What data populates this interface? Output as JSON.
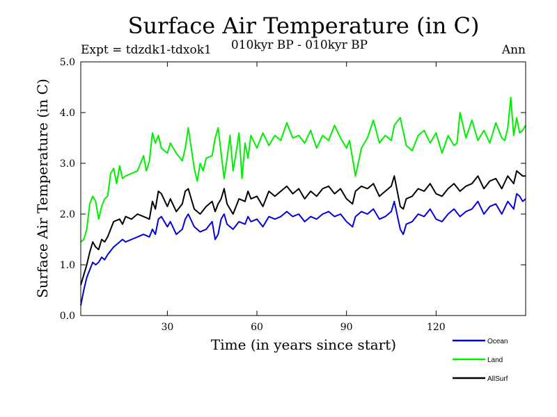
{
  "chart_data": {
    "type": "line",
    "title": "Surface Air Temperature (in C)",
    "subtitle": "010kyr BP - 010kyr BP",
    "left_label": "Expt = tdzdk1-tdxok1",
    "right_label": "Ann",
    "xlabel": "Time (in years since start)",
    "ylabel": "Surface Air Temperature (in C)",
    "xlim": [
      1,
      150
    ],
    "ylim": [
      0,
      5
    ],
    "xticks": [
      30,
      60,
      90,
      120
    ],
    "yticks": [
      0.0,
      1.0,
      2.0,
      3.0,
      4.0,
      5.0
    ],
    "ytick_labels": [
      "0.0",
      "1.0",
      "2.0",
      "3.0",
      "4.0",
      "5.0"
    ],
    "grid": false,
    "legend_position": "bottom-right",
    "series": [
      {
        "name": "Ocean",
        "color": "#0000dd",
        "x": [
          1,
          2,
          3,
          4,
          5,
          6,
          7,
          8,
          9,
          10,
          12,
          14,
          15,
          16,
          18,
          20,
          22,
          24,
          25,
          26,
          27,
          28,
          30,
          31,
          33,
          35,
          36,
          37,
          39,
          41,
          43,
          45,
          46,
          47,
          48,
          49,
          50,
          52,
          54,
          56,
          57,
          58,
          60,
          62,
          64,
          66,
          68,
          70,
          72,
          74,
          76,
          78,
          80,
          82,
          84,
          86,
          88,
          90,
          92,
          93,
          95,
          97,
          99,
          101,
          103,
          105,
          106,
          108,
          109,
          110,
          112,
          114,
          116,
          118,
          120,
          122,
          124,
          126,
          128,
          130,
          132,
          134,
          136,
          138,
          140,
          142,
          144,
          146,
          147,
          148,
          149,
          150
        ],
        "values": [
          0.2,
          0.5,
          0.75,
          0.9,
          1.05,
          1.0,
          1.05,
          1.15,
          1.1,
          1.2,
          1.35,
          1.45,
          1.5,
          1.45,
          1.5,
          1.55,
          1.6,
          1.55,
          1.7,
          1.6,
          1.9,
          1.95,
          1.75,
          1.85,
          1.6,
          1.7,
          1.9,
          2.0,
          1.75,
          1.65,
          1.7,
          1.85,
          1.5,
          1.6,
          1.9,
          2.0,
          1.8,
          1.7,
          1.85,
          1.8,
          1.95,
          1.85,
          1.9,
          1.75,
          1.95,
          1.9,
          1.95,
          2.05,
          1.95,
          2.0,
          1.85,
          1.95,
          1.9,
          2.0,
          2.05,
          1.95,
          2.0,
          1.85,
          1.75,
          1.95,
          2.05,
          2.0,
          2.1,
          1.9,
          1.95,
          2.05,
          2.25,
          1.7,
          1.6,
          1.8,
          1.85,
          2.0,
          1.95,
          2.1,
          1.9,
          1.85,
          2.0,
          2.1,
          1.95,
          2.05,
          2.1,
          2.25,
          2.0,
          2.15,
          2.2,
          2.0,
          2.25,
          2.1,
          2.4,
          2.35,
          2.25,
          2.3
        ]
      },
      {
        "name": "Land",
        "color": "#00ee00",
        "x": [
          1,
          2,
          3,
          4,
          5,
          6,
          7,
          8,
          9,
          10,
          11,
          12,
          13,
          14,
          15,
          16,
          18,
          20,
          22,
          23,
          24,
          25,
          26,
          27,
          28,
          30,
          31,
          33,
          35,
          36,
          37,
          39,
          40,
          41,
          42,
          43,
          45,
          46,
          47,
          48,
          49,
          50,
          51,
          52,
          53,
          54,
          55,
          56,
          57,
          58,
          60,
          62,
          64,
          66,
          68,
          70,
          72,
          74,
          76,
          78,
          80,
          82,
          84,
          86,
          88,
          90,
          91,
          92,
          93,
          95,
          97,
          99,
          101,
          103,
          105,
          106,
          108,
          110,
          112,
          114,
          116,
          118,
          120,
          122,
          124,
          126,
          127,
          128,
          130,
          132,
          134,
          136,
          138,
          140,
          142,
          143,
          144,
          145,
          146,
          147,
          148,
          149,
          150
        ],
        "values": [
          1.45,
          1.5,
          1.7,
          2.2,
          2.35,
          2.25,
          1.9,
          2.15,
          2.3,
          2.35,
          2.8,
          2.9,
          2.6,
          2.95,
          2.7,
          2.75,
          2.8,
          2.85,
          3.15,
          2.85,
          3.05,
          3.6,
          3.4,
          3.55,
          3.3,
          3.2,
          3.4,
          3.2,
          3.05,
          3.3,
          3.7,
          2.9,
          2.65,
          3.0,
          2.85,
          3.1,
          3.15,
          3.5,
          3.7,
          3.2,
          2.7,
          3.1,
          3.55,
          2.85,
          3.2,
          3.6,
          2.7,
          3.4,
          3.1,
          3.55,
          3.3,
          3.6,
          3.35,
          3.55,
          3.45,
          3.8,
          3.5,
          3.55,
          3.4,
          3.65,
          3.3,
          3.55,
          3.45,
          3.75,
          3.5,
          3.3,
          3.45,
          3.1,
          2.75,
          3.3,
          3.5,
          3.85,
          3.4,
          3.55,
          3.45,
          3.75,
          3.9,
          3.35,
          3.25,
          3.55,
          3.65,
          3.4,
          3.6,
          3.2,
          3.55,
          3.35,
          3.4,
          4.0,
          3.5,
          3.85,
          3.45,
          3.65,
          3.4,
          3.8,
          3.5,
          3.45,
          3.7,
          4.3,
          3.55,
          3.9,
          3.6,
          3.65,
          3.75
        ]
      },
      {
        "name": "AllSurf",
        "color": "#000000",
        "x": [
          1,
          2,
          3,
          4,
          5,
          6,
          7,
          8,
          9,
          10,
          12,
          14,
          15,
          16,
          18,
          20,
          22,
          24,
          25,
          26,
          27,
          28,
          30,
          31,
          33,
          35,
          36,
          37,
          39,
          41,
          43,
          45,
          46,
          47,
          48,
          49,
          50,
          52,
          54,
          56,
          57,
          58,
          60,
          62,
          64,
          66,
          68,
          70,
          72,
          74,
          76,
          78,
          80,
          82,
          84,
          86,
          88,
          90,
          92,
          93,
          95,
          97,
          99,
          101,
          103,
          105,
          106,
          108,
          109,
          110,
          112,
          114,
          116,
          118,
          120,
          122,
          124,
          126,
          128,
          130,
          132,
          134,
          136,
          138,
          140,
          142,
          144,
          146,
          147,
          148,
          149,
          150
        ],
        "values": [
          0.6,
          0.8,
          1.0,
          1.25,
          1.45,
          1.35,
          1.3,
          1.5,
          1.45,
          1.55,
          1.85,
          1.9,
          1.8,
          1.95,
          1.9,
          2.0,
          1.95,
          1.9,
          2.25,
          2.1,
          2.45,
          2.4,
          2.15,
          2.3,
          2.05,
          2.2,
          2.45,
          2.5,
          2.1,
          2.0,
          2.15,
          2.25,
          2.05,
          2.2,
          2.3,
          2.5,
          2.2,
          2.0,
          2.3,
          2.25,
          2.45,
          2.3,
          2.35,
          2.15,
          2.45,
          2.35,
          2.45,
          2.55,
          2.4,
          2.5,
          2.3,
          2.45,
          2.35,
          2.5,
          2.55,
          2.4,
          2.5,
          2.3,
          2.2,
          2.45,
          2.55,
          2.5,
          2.6,
          2.35,
          2.45,
          2.55,
          2.75,
          2.15,
          2.1,
          2.3,
          2.35,
          2.5,
          2.45,
          2.6,
          2.4,
          2.35,
          2.5,
          2.6,
          2.45,
          2.55,
          2.6,
          2.75,
          2.5,
          2.65,
          2.7,
          2.5,
          2.75,
          2.6,
          2.85,
          2.8,
          2.75,
          2.75
        ]
      }
    ]
  }
}
